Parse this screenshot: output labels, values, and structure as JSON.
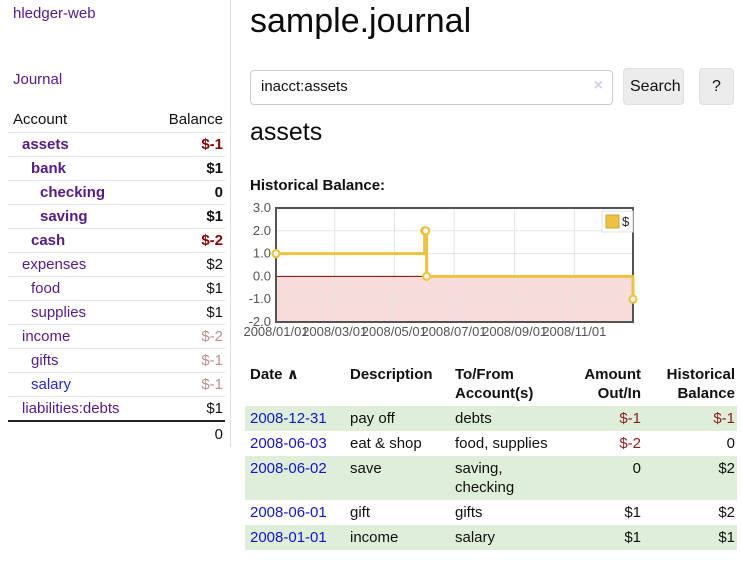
{
  "app": {
    "brand": "hledger-web",
    "nav_journal": "Journal"
  },
  "sidebar": {
    "headers": {
      "account": "Account",
      "balance": "Balance"
    },
    "accounts": [
      {
        "name": "assets",
        "balance": "$-1",
        "indent": 1,
        "bold": true,
        "name_color": "purple",
        "balance_class": "neg-strong"
      },
      {
        "name": "bank",
        "balance": "$1",
        "indent": 2,
        "bold": true,
        "name_color": "purple",
        "balance_class": "pos"
      },
      {
        "name": "checking",
        "balance": "0",
        "indent": 3,
        "bold": true,
        "name_color": "purple",
        "balance_class": "pos"
      },
      {
        "name": "saving",
        "balance": "$1",
        "indent": 3,
        "bold": true,
        "name_color": "purple",
        "balance_class": "pos"
      },
      {
        "name": "cash",
        "balance": "$-2",
        "indent": 2,
        "bold": true,
        "name_color": "purple",
        "balance_class": "neg-strong"
      },
      {
        "name": "expenses",
        "balance": "$2",
        "indent": 1,
        "bold": false,
        "name_color": "purple",
        "balance_class": "pos"
      },
      {
        "name": "food",
        "balance": "$1",
        "indent": 2,
        "bold": false,
        "name_color": "purple",
        "balance_class": "pos"
      },
      {
        "name": "supplies",
        "balance": "$1",
        "indent": 2,
        "bold": false,
        "name_color": "purple",
        "balance_class": "pos"
      },
      {
        "name": "income",
        "balance": "$-2",
        "indent": 1,
        "bold": false,
        "name_color": "purple",
        "balance_class": "neg-weak"
      },
      {
        "name": "gifts",
        "balance": "$-1",
        "indent": 2,
        "bold": false,
        "name_color": "purple",
        "balance_class": "neg-weak"
      },
      {
        "name": "salary",
        "balance": "$-1",
        "indent": 2,
        "bold": false,
        "name_color": "blue",
        "balance_class": "neg-weak"
      },
      {
        "name": "liabilities:debts",
        "balance": "$1",
        "indent": 1,
        "bold": false,
        "name_color": "purple",
        "balance_class": "pos"
      }
    ],
    "total": "0"
  },
  "header": {
    "title": "sample.journal"
  },
  "search": {
    "value": "inacct:assets",
    "clear_icon": "×",
    "button_label": "Search",
    "help_label": "?"
  },
  "main": {
    "account_title": "assets",
    "chart_label": "Historical Balance:"
  },
  "chart_data": {
    "type": "line",
    "step": true,
    "title": "Historical Balance:",
    "x_range": [
      "2008-01-01",
      "2008-12-31"
    ],
    "ylim": [
      -2,
      3
    ],
    "yticks": [
      3,
      2,
      1,
      0,
      -1,
      -2
    ],
    "xticks": [
      "2008/01/01",
      "2008/03/01",
      "2008/05/01",
      "2008/07/01",
      "2008/09/01",
      "2008/11/01"
    ],
    "series": [
      {
        "name": "$",
        "color": "#edc240",
        "points": [
          [
            "2008-01-01",
            1
          ],
          [
            "2008-06-01",
            2
          ],
          [
            "2008-06-02",
            2
          ],
          [
            "2008-06-03",
            0
          ],
          [
            "2008-12-31",
            -1
          ]
        ]
      }
    ],
    "grid": true,
    "legend_position": "top-right",
    "negative_region_color": "#f8dcdc",
    "zero_line_color": "#8b0000"
  },
  "register": {
    "headers": {
      "date": "Date",
      "sort_icon": "∧",
      "description": "Description",
      "accounts": "To/From Account(s)",
      "amount": "Amount Out/In",
      "balance": "Historical Balance"
    },
    "rows": [
      {
        "date": "2008-12-31",
        "description": "pay off",
        "accounts": "debts",
        "amount": "$-1",
        "amount_neg": true,
        "balance": "$-1",
        "balance_neg": true
      },
      {
        "date": "2008-06-03",
        "description": "eat & shop",
        "accounts": "food, supplies",
        "amount": "$-2",
        "amount_neg": true,
        "balance": "0",
        "balance_neg": false
      },
      {
        "date": "2008-06-02",
        "description": "save",
        "accounts": "saving, checking",
        "amount": "0",
        "amount_neg": false,
        "balance": "$2",
        "balance_neg": false
      },
      {
        "date": "2008-06-01",
        "description": "gift",
        "accounts": "gifts",
        "amount": "$1",
        "amount_neg": false,
        "balance": "$2",
        "balance_neg": false
      },
      {
        "date": "2008-01-01",
        "description": "income",
        "accounts": "salary",
        "amount": "$1",
        "amount_neg": false,
        "balance": "$1",
        "balance_neg": false
      }
    ]
  },
  "colors": {
    "accent_purple": "#551a8b",
    "link_blue": "#1414cc",
    "neg_strong": "#8b0000",
    "neg_weak": "#bd8f8f",
    "table_neg": "#8b1d1d",
    "row_green": "#deeed8",
    "series_yellow": "#edc240",
    "grid_gray": "#e3e3e3",
    "chart_border": "#545454"
  }
}
